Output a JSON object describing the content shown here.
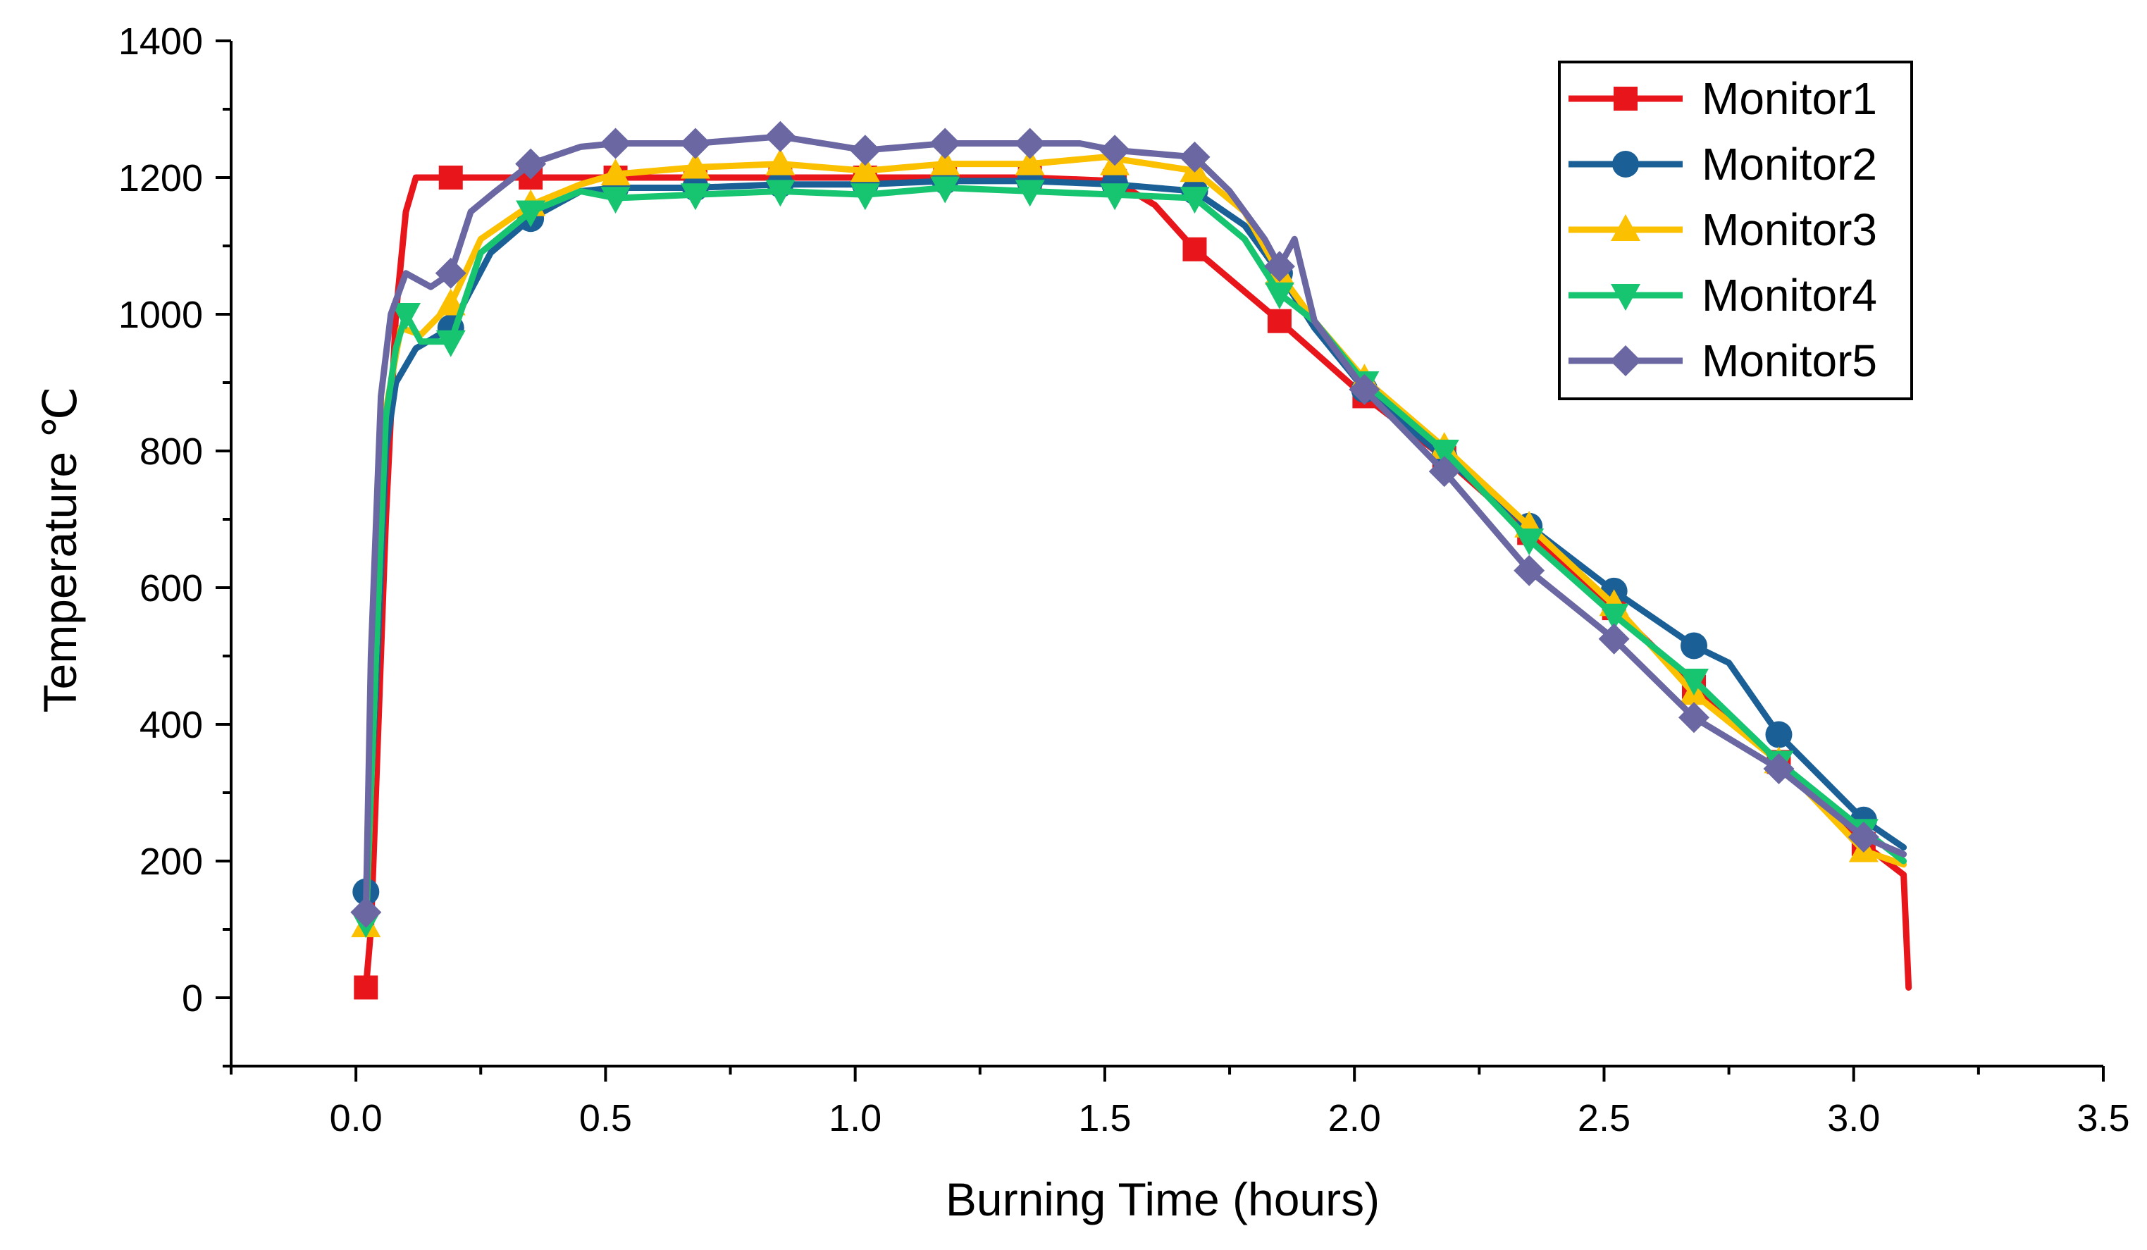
{
  "chart_data": {
    "type": "line",
    "title": "",
    "xlabel": "Burning Time (hours)",
    "ylabel": "Temperature ℃",
    "xlim": [
      -0.25,
      3.5
    ],
    "ylim": [
      -100,
      1400
    ],
    "x_ticks": [
      0.0,
      0.5,
      1.0,
      1.5,
      2.0,
      2.5,
      3.0,
      3.5
    ],
    "x_tick_labels": [
      "0.0",
      "0.5",
      "1.0",
      "1.5",
      "2.0",
      "2.5",
      "3.0",
      "3.5"
    ],
    "y_ticks": [
      0,
      200,
      400,
      600,
      800,
      1000,
      1200,
      1400
    ],
    "y_tick_labels": [
      "0",
      "200",
      "400",
      "600",
      "800",
      "1000",
      "1200",
      "1400"
    ],
    "legend_position": "top-right",
    "series": [
      {
        "name": "Monitor1",
        "color": "#e8151b",
        "marker": "square",
        "x": [
          0.02,
          0.03,
          0.04,
          0.06,
          0.08,
          0.1,
          0.12,
          0.19,
          0.35,
          0.52,
          0.68,
          0.85,
          1.02,
          1.18,
          1.35,
          1.52,
          1.6,
          1.68,
          1.85,
          2.02,
          2.18,
          2.35,
          2.52,
          2.68,
          2.85,
          3.02,
          3.1,
          3.11
        ],
        "y": [
          15,
          100,
          300,
          700,
          1000,
          1150,
          1200,
          1200,
          1200,
          1200,
          1200,
          1200,
          1200,
          1200,
          1200,
          1195,
          1160,
          1095,
          990,
          880,
          790,
          680,
          570,
          455,
          345,
          225,
          180,
          15
        ],
        "marker_x": [
          0.02,
          0.19,
          0.35,
          0.52,
          0.68,
          0.85,
          1.02,
          1.18,
          1.35,
          1.52,
          1.68,
          1.85,
          2.02,
          2.18,
          2.35,
          2.52,
          2.68,
          2.85,
          3.02
        ],
        "marker_y": [
          15,
          1200,
          1200,
          1200,
          1200,
          1200,
          1200,
          1200,
          1200,
          1195,
          1095,
          990,
          880,
          790,
          680,
          570,
          455,
          345,
          225
        ]
      },
      {
        "name": "Monitor2",
        "color": "#1a5f96",
        "marker": "circle",
        "x": [
          0.02,
          0.04,
          0.06,
          0.08,
          0.12,
          0.19,
          0.27,
          0.35,
          0.45,
          0.52,
          0.68,
          0.85,
          1.02,
          1.18,
          1.35,
          1.52,
          1.68,
          1.78,
          1.85,
          1.92,
          2.02,
          2.18,
          2.35,
          2.52,
          2.68,
          2.75,
          2.85,
          3.02,
          3.1
        ],
        "y": [
          155,
          450,
          800,
          900,
          950,
          980,
          1090,
          1140,
          1180,
          1185,
          1185,
          1190,
          1190,
          1195,
          1195,
          1190,
          1180,
          1130,
          1060,
          980,
          890,
          790,
          690,
          595,
          515,
          490,
          385,
          260,
          220
        ],
        "marker_x": [
          0.02,
          0.19,
          0.35,
          0.52,
          0.68,
          0.85,
          1.02,
          1.18,
          1.35,
          1.52,
          1.68,
          1.85,
          2.02,
          2.18,
          2.35,
          2.52,
          2.68,
          2.85,
          3.02
        ],
        "marker_y": [
          155,
          980,
          1140,
          1185,
          1185,
          1190,
          1190,
          1195,
          1195,
          1190,
          1180,
          1060,
          890,
          790,
          690,
          595,
          515,
          385,
          260
        ]
      },
      {
        "name": "Monitor3",
        "color": "#fbc000",
        "marker": "triangle-up",
        "x": [
          0.02,
          0.04,
          0.06,
          0.09,
          0.13,
          0.19,
          0.25,
          0.35,
          0.45,
          0.52,
          0.68,
          0.85,
          1.02,
          1.18,
          1.35,
          1.5,
          1.68,
          1.78,
          1.85,
          1.92,
          2.02,
          2.18,
          2.35,
          2.52,
          2.68,
          2.85,
          3.02,
          3.1
        ],
        "y": [
          105,
          500,
          860,
          980,
          970,
          1015,
          1110,
          1160,
          1190,
          1205,
          1215,
          1220,
          1210,
          1220,
          1220,
          1230,
          1210,
          1150,
          1060,
          990,
          905,
          805,
          690,
          575,
          445,
          345,
          215,
          195
        ],
        "marker_x": [
          0.02,
          0.19,
          0.35,
          0.52,
          0.68,
          0.85,
          1.02,
          1.18,
          1.35,
          1.52,
          1.68,
          1.85,
          2.02,
          2.18,
          2.35,
          2.52,
          2.68,
          2.85,
          3.02
        ],
        "marker_y": [
          105,
          1015,
          1160,
          1205,
          1215,
          1220,
          1210,
          1220,
          1220,
          1220,
          1210,
          1060,
          905,
          805,
          690,
          575,
          445,
          345,
          215
        ]
      },
      {
        "name": "Monitor4",
        "color": "#17c571",
        "marker": "triangle-down",
        "x": [
          0.02,
          0.04,
          0.06,
          0.08,
          0.1,
          0.13,
          0.19,
          0.25,
          0.35,
          0.45,
          0.52,
          0.68,
          0.85,
          1.02,
          1.18,
          1.35,
          1.52,
          1.68,
          1.78,
          1.85,
          1.92,
          2.02,
          2.18,
          2.35,
          2.52,
          2.68,
          2.85,
          3.02,
          3.1
        ],
        "y": [
          110,
          500,
          850,
          950,
          1000,
          960,
          960,
          1090,
          1150,
          1180,
          1170,
          1175,
          1180,
          1175,
          1185,
          1180,
          1175,
          1170,
          1110,
          1030,
          990,
          900,
          800,
          670,
          560,
          465,
          345,
          245,
          200
        ],
        "marker_x": [
          0.02,
          0.1,
          0.19,
          0.35,
          0.52,
          0.68,
          0.85,
          1.02,
          1.18,
          1.35,
          1.52,
          1.68,
          1.85,
          2.02,
          2.18,
          2.35,
          2.52,
          2.68,
          2.85,
          3.02
        ],
        "marker_y": [
          110,
          1000,
          960,
          1150,
          1170,
          1175,
          1180,
          1175,
          1185,
          1180,
          1175,
          1170,
          1030,
          900,
          800,
          670,
          560,
          465,
          345,
          245
        ]
      },
      {
        "name": "Monitor5",
        "color": "#6a67a2",
        "marker": "diamond",
        "x": [
          0.02,
          0.03,
          0.05,
          0.07,
          0.1,
          0.15,
          0.19,
          0.23,
          0.28,
          0.35,
          0.45,
          0.52,
          0.68,
          0.85,
          1.02,
          1.18,
          1.35,
          1.45,
          1.52,
          1.68,
          1.75,
          1.82,
          1.85,
          1.88,
          1.92,
          2.02,
          2.18,
          2.35,
          2.52,
          2.68,
          2.85,
          3.02,
          3.1
        ],
        "y": [
          125,
          500,
          880,
          1000,
          1060,
          1040,
          1060,
          1150,
          1180,
          1220,
          1245,
          1250,
          1250,
          1260,
          1240,
          1250,
          1250,
          1250,
          1240,
          1230,
          1180,
          1110,
          1070,
          1110,
          990,
          890,
          770,
          625,
          525,
          410,
          335,
          235,
          210
        ],
        "marker_x": [
          0.02,
          0.19,
          0.35,
          0.52,
          0.68,
          0.85,
          1.02,
          1.18,
          1.35,
          1.52,
          1.68,
          1.85,
          2.02,
          2.18,
          2.35,
          2.52,
          2.68,
          2.85,
          3.02
        ],
        "marker_y": [
          125,
          1060,
          1220,
          1250,
          1250,
          1260,
          1240,
          1250,
          1250,
          1240,
          1230,
          1070,
          890,
          770,
          625,
          525,
          410,
          335,
          235
        ]
      }
    ]
  }
}
